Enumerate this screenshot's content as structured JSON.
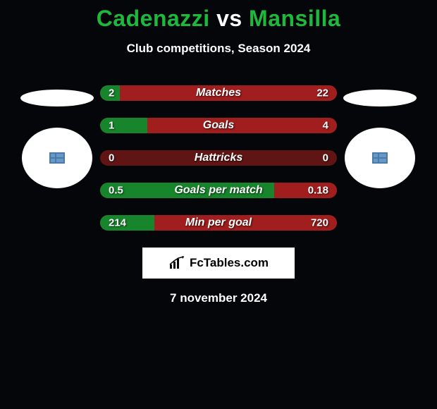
{
  "title": {
    "player1": "Cadenazzi",
    "vs": "vs",
    "player2": "Mansilla"
  },
  "subtitle": "Club competitions, Season 2024",
  "background_color": "#04060a",
  "bar": {
    "track_color": "#611414",
    "left_fill_color": "#17852b",
    "right_fill_color": "#a01e1e",
    "text_color": "#ffffff"
  },
  "rows": [
    {
      "label": "Matches",
      "left_value": "2",
      "right_value": "22",
      "left_num": 2,
      "right_num": 22,
      "left_pct": 8.3,
      "right_pct": 91.7
    },
    {
      "label": "Goals",
      "left_value": "1",
      "right_value": "4",
      "left_num": 1,
      "right_num": 4,
      "left_pct": 20,
      "right_pct": 80
    },
    {
      "label": "Hattricks",
      "left_value": "0",
      "right_value": "0",
      "left_num": 0,
      "right_num": 0,
      "left_pct": 0,
      "right_pct": 0
    },
    {
      "label": "Goals per match",
      "left_value": "0.5",
      "right_value": "0.18",
      "left_num": 0.5,
      "right_num": 0.18,
      "left_pct": 73.5,
      "right_pct": 26.5
    },
    {
      "label": "Min per goal",
      "left_value": "214",
      "right_value": "720",
      "left_num": 214,
      "right_num": 720,
      "left_pct": 22.9,
      "right_pct": 77.1
    }
  ],
  "brand": "FcTables.com",
  "date": "7 november 2024"
}
